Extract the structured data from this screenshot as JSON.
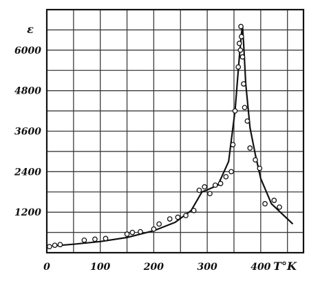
{
  "chart_data": {
    "type": "line",
    "xlabel": "T°K",
    "ylabel": "ε",
    "xlim": [
      0,
      480
    ],
    "ylim": [
      0,
      7200
    ],
    "grid": true,
    "x_ticks": [
      0,
      100,
      200,
      300,
      400
    ],
    "x_tick_labels": [
      "0",
      "100",
      "200",
      "300",
      "400"
    ],
    "y_ticks": [
      1200,
      2400,
      3600,
      4800,
      6000
    ],
    "y_tick_labels": [
      "1200",
      "2400",
      "3600",
      "4800",
      "6000"
    ],
    "series": [
      {
        "kind": "line",
        "x": [
          10,
          50,
          100,
          150,
          200,
          240,
          270,
          290,
          300,
          320,
          340,
          352,
          360,
          364,
          366,
          368,
          372,
          380,
          390,
          400,
          420,
          440,
          460
        ],
        "y": [
          200,
          250,
          330,
          450,
          650,
          900,
          1250,
          1800,
          1860,
          2000,
          2700,
          4200,
          5800,
          6500,
          6700,
          6200,
          5000,
          3700,
          2900,
          2200,
          1450,
          1150,
          850
        ]
      },
      {
        "kind": "scatter",
        "x": [
          5,
          15,
          25,
          70,
          90,
          110,
          150,
          160,
          175,
          200,
          210,
          230,
          245,
          260,
          275,
          285,
          295,
          305,
          315,
          325,
          335,
          345,
          348,
          352,
          358,
          360,
          362,
          363,
          364,
          366,
          368,
          370,
          375,
          380,
          390,
          398,
          408,
          425,
          435
        ],
        "y": [
          180,
          220,
          240,
          370,
          400,
          420,
          550,
          600,
          620,
          700,
          850,
          1000,
          1050,
          1100,
          1250,
          1850,
          1950,
          1750,
          2000,
          2050,
          2250,
          2400,
          3200,
          4200,
          5500,
          6200,
          6000,
          6700,
          6400,
          5800,
          5000,
          4300,
          3900,
          3100,
          2750,
          2500,
          1450,
          1550,
          1350
        ]
      }
    ]
  }
}
